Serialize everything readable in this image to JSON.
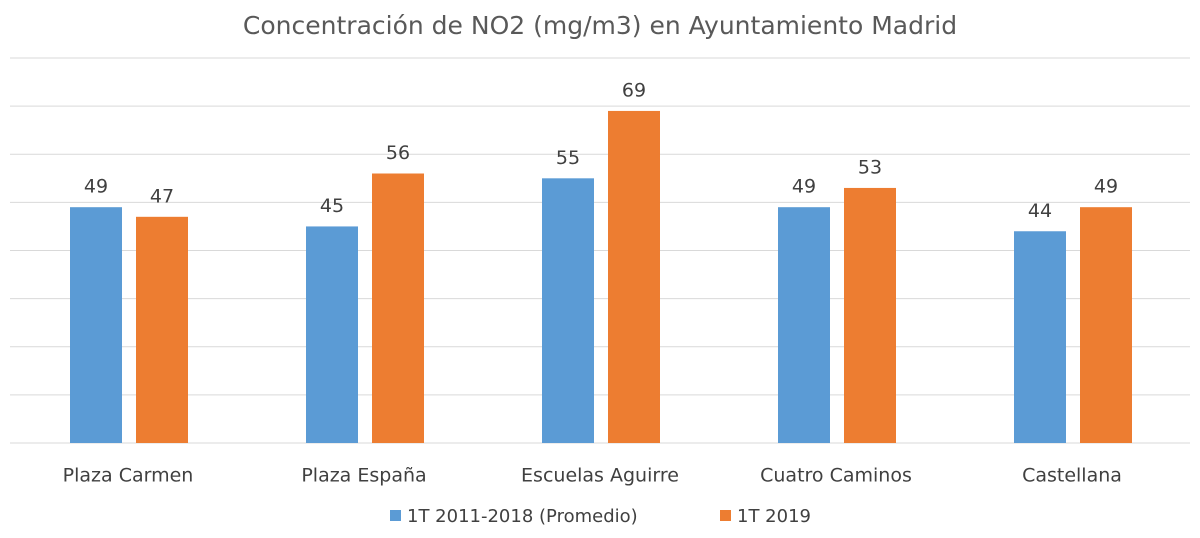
{
  "chart_data": {
    "type": "bar",
    "title": "Concentración de NO2 (mg/m3) en Ayuntamiento Madrid",
    "categories": [
      "Plaza Carmen",
      "Plaza España",
      "Escuelas Aguirre",
      "Cuatro Caminos",
      "Castellana"
    ],
    "series": [
      {
        "name": "1T 2011-2018 (Promedio)",
        "color": "#5b9bd5",
        "values": [
          49,
          45,
          55,
          49,
          44
        ]
      },
      {
        "name": "1T 2019",
        "color": "#ed7d31",
        "values": [
          47,
          56,
          69,
          53,
          49
        ]
      }
    ],
    "ylim": [
      0,
      80
    ],
    "yticks": [
      0,
      10,
      20,
      30,
      40,
      50,
      60,
      70,
      80
    ],
    "grid": true,
    "legend": "bottom"
  }
}
